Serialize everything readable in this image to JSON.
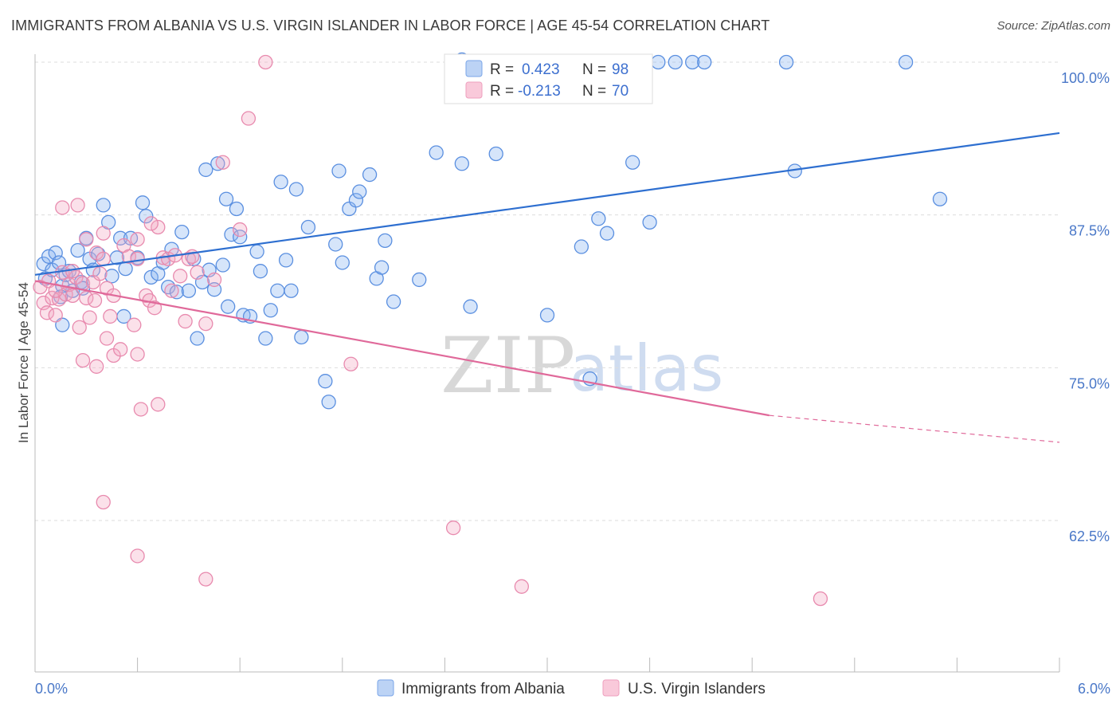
{
  "header": {
    "title": "IMMIGRANTS FROM ALBANIA VS U.S. VIRGIN ISLANDER IN LABOR FORCE | AGE 45-54 CORRELATION CHART",
    "source": "Source: ZipAtlas.com"
  },
  "watermark": {
    "zip": "ZIP",
    "atlas": "atlas"
  },
  "legend": {
    "r_label": "R =",
    "n_label": "N =",
    "entries": [
      {
        "r": "0.423",
        "n": "98",
        "color": "#8ab4f0"
      },
      {
        "r": "-0.213",
        "n": "70",
        "color": "#f4a8c4"
      }
    ]
  },
  "chart_data": {
    "type": "scatter",
    "title": "IMMIGRANTS FROM ALBANIA VS U.S. VIRGIN ISLANDER IN LABOR FORCE | AGE 45-54 CORRELATION CHART",
    "ylabel": "In Labor Force | Age 45-54",
    "xlabel": "",
    "xlim": [
      0,
      6
    ],
    "ylim": [
      50,
      101.5
    ],
    "x_tick_labels": [
      "0.0%",
      "6.0%"
    ],
    "y_ticks": [
      {
        "value": 100,
        "label": "100.0%"
      },
      {
        "value": 87.5,
        "label": "87.5%"
      },
      {
        "value": 75,
        "label": "75.0%"
      },
      {
        "value": 62.5,
        "label": "62.5%"
      }
    ],
    "grid": "horizontal dashed",
    "legend_position": "top-center",
    "series": [
      {
        "name": "Immigrants from Albania",
        "color": "#8ab4f0",
        "stroke": "#5a8fe0",
        "trend": {
          "x0": 0,
          "y0": 82.6,
          "x1": 6,
          "y1": 94.2,
          "color": "#2e6fd0"
        },
        "points": [
          [
            0.05,
            83.5
          ],
          [
            0.06,
            82.3
          ],
          [
            0.08,
            84.1
          ],
          [
            0.1,
            83.0
          ],
          [
            0.12,
            84.4
          ],
          [
            0.14,
            83.6
          ],
          [
            0.16,
            81.7
          ],
          [
            0.18,
            82.6
          ],
          [
            0.2,
            82.9
          ],
          [
            0.22,
            81.3
          ],
          [
            0.25,
            84.6
          ],
          [
            0.27,
            82.0
          ],
          [
            0.3,
            85.6
          ],
          [
            0.32,
            83.9
          ],
          [
            0.34,
            83.0
          ],
          [
            0.37,
            84.3
          ],
          [
            0.4,
            88.3
          ],
          [
            0.43,
            86.9
          ],
          [
            0.45,
            82.5
          ],
          [
            0.48,
            84.0
          ],
          [
            0.5,
            85.6
          ],
          [
            0.53,
            83.1
          ],
          [
            0.56,
            85.6
          ],
          [
            0.6,
            84.0
          ],
          [
            0.63,
            88.5
          ],
          [
            0.65,
            87.4
          ],
          [
            0.68,
            82.4
          ],
          [
            0.72,
            82.7
          ],
          [
            0.75,
            83.6
          ],
          [
            0.78,
            81.6
          ],
          [
            0.8,
            84.7
          ],
          [
            0.83,
            81.2
          ],
          [
            0.86,
            86.1
          ],
          [
            0.9,
            81.3
          ],
          [
            0.93,
            83.9
          ],
          [
            0.95,
            77.4
          ],
          [
            0.98,
            82.0
          ],
          [
            1.0,
            91.2
          ],
          [
            1.02,
            83.0
          ],
          [
            1.05,
            81.4
          ],
          [
            1.07,
            91.7
          ],
          [
            1.1,
            83.4
          ],
          [
            1.12,
            88.8
          ],
          [
            1.15,
            85.9
          ],
          [
            1.18,
            88.0
          ],
          [
            1.2,
            85.7
          ],
          [
            1.22,
            79.3
          ],
          [
            1.26,
            79.2
          ],
          [
            1.3,
            84.5
          ],
          [
            1.32,
            82.9
          ],
          [
            1.35,
            77.4
          ],
          [
            1.38,
            79.7
          ],
          [
            1.42,
            81.3
          ],
          [
            1.44,
            90.2
          ],
          [
            1.47,
            83.8
          ],
          [
            1.5,
            81.3
          ],
          [
            1.53,
            89.6
          ],
          [
            1.56,
            77.5
          ],
          [
            1.6,
            86.5
          ],
          [
            1.7,
            73.9
          ],
          [
            1.72,
            72.2
          ],
          [
            1.76,
            85.1
          ],
          [
            1.78,
            91.1
          ],
          [
            1.8,
            83.6
          ],
          [
            1.84,
            88.0
          ],
          [
            1.88,
            88.7
          ],
          [
            1.9,
            89.4
          ],
          [
            1.96,
            90.8
          ],
          [
            2.0,
            82.3
          ],
          [
            2.03,
            83.2
          ],
          [
            2.05,
            85.4
          ],
          [
            2.1,
            80.4
          ],
          [
            2.25,
            82.2
          ],
          [
            2.35,
            92.6
          ],
          [
            2.5,
            91.7
          ],
          [
            2.55,
            80.0
          ],
          [
            2.7,
            92.5
          ],
          [
            3.0,
            79.3
          ],
          [
            3.2,
            84.9
          ],
          [
            3.25,
            74.1
          ],
          [
            3.3,
            87.2
          ],
          [
            3.35,
            86.0
          ],
          [
            3.5,
            91.8
          ],
          [
            3.6,
            86.9
          ],
          [
            4.45,
            91.1
          ],
          [
            5.3,
            88.8
          ],
          [
            2.5,
            100.2
          ],
          [
            3.65,
            100.0
          ],
          [
            3.75,
            100.0
          ],
          [
            3.85,
            100.0
          ],
          [
            3.92,
            100.0
          ],
          [
            4.4,
            100.0
          ],
          [
            5.1,
            100.0
          ],
          [
            0.16,
            78.5
          ],
          [
            1.13,
            80.0
          ],
          [
            0.15,
            80.8
          ],
          [
            0.52,
            79.2
          ],
          [
            0.28,
            81.5
          ]
        ]
      },
      {
        "name": "U.S. Virgin Islanders",
        "color": "#f4a8c4",
        "stroke": "#e88aae",
        "trend": {
          "x0": 0,
          "y0": 82.1,
          "x1": 4.3,
          "y1": 71.1,
          "dash_x1": 6,
          "dash_y1": 68.9,
          "color": "#e0699a"
        },
        "points": [
          [
            0.03,
            81.6
          ],
          [
            0.05,
            80.3
          ],
          [
            0.07,
            79.5
          ],
          [
            0.08,
            82.1
          ],
          [
            0.1,
            80.7
          ],
          [
            0.12,
            79.3
          ],
          [
            0.14,
            80.6
          ],
          [
            0.16,
            82.8
          ],
          [
            0.18,
            81.0
          ],
          [
            0.2,
            81.8
          ],
          [
            0.22,
            80.9
          ],
          [
            0.24,
            82.4
          ],
          [
            0.26,
            78.3
          ],
          [
            0.28,
            81.9
          ],
          [
            0.3,
            80.7
          ],
          [
            0.32,
            79.1
          ],
          [
            0.34,
            82.0
          ],
          [
            0.36,
            84.4
          ],
          [
            0.38,
            82.7
          ],
          [
            0.4,
            83.9
          ],
          [
            0.42,
            81.5
          ],
          [
            0.44,
            79.2
          ],
          [
            0.46,
            76.0
          ],
          [
            0.5,
            76.5
          ],
          [
            0.52,
            85.0
          ],
          [
            0.55,
            84.1
          ],
          [
            0.58,
            78.5
          ],
          [
            0.6,
            83.9
          ],
          [
            0.62,
            71.6
          ],
          [
            0.65,
            80.9
          ],
          [
            0.67,
            80.5
          ],
          [
            0.7,
            79.9
          ],
          [
            0.72,
            86.5
          ],
          [
            0.75,
            84.0
          ],
          [
            0.78,
            83.9
          ],
          [
            0.8,
            81.3
          ],
          [
            0.82,
            84.2
          ],
          [
            0.85,
            82.5
          ],
          [
            0.88,
            78.8
          ],
          [
            0.9,
            83.9
          ],
          [
            0.92,
            84.1
          ],
          [
            0.95,
            82.8
          ],
          [
            1.0,
            78.6
          ],
          [
            1.05,
            82.2
          ],
          [
            1.1,
            91.8
          ],
          [
            1.2,
            86.3
          ],
          [
            1.25,
            95.4
          ],
          [
            1.35,
            100.0
          ],
          [
            0.28,
            75.6
          ],
          [
            0.36,
            75.1
          ],
          [
            0.42,
            77.4
          ],
          [
            0.6,
            76.1
          ],
          [
            0.6,
            85.5
          ],
          [
            0.72,
            72.0
          ],
          [
            0.25,
            88.3
          ],
          [
            0.3,
            85.5
          ],
          [
            0.35,
            80.5
          ],
          [
            0.16,
            88.1
          ],
          [
            0.4,
            86.0
          ],
          [
            0.68,
            86.8
          ],
          [
            1.85,
            75.3
          ],
          [
            0.4,
            64.0
          ],
          [
            0.6,
            59.6
          ],
          [
            1.0,
            57.7
          ],
          [
            2.45,
            61.9
          ],
          [
            2.85,
            57.1
          ],
          [
            4.6,
            56.1
          ],
          [
            0.46,
            80.9
          ],
          [
            0.12,
            81.3
          ],
          [
            0.22,
            82.9
          ]
        ]
      }
    ]
  }
}
